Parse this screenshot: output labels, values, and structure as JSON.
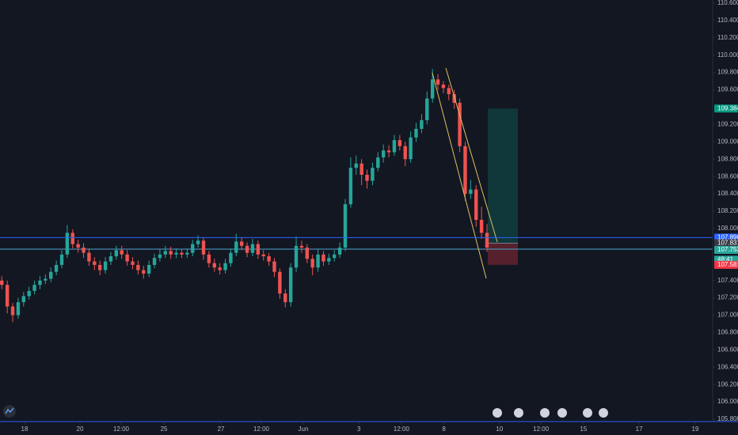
{
  "chart_data": {
    "type": "candlestick",
    "series": [
      {
        "up_color": "#26a69a",
        "down_color": "#ef5350",
        "open": [
          107.4,
          107.35,
          107.1,
          107.0,
          107.15,
          107.22,
          107.28,
          107.35,
          107.4,
          107.42,
          107.5,
          107.58,
          107.7,
          107.95,
          107.82,
          107.78,
          107.72,
          107.62,
          107.58,
          107.52,
          107.62,
          107.68,
          107.75,
          107.7,
          107.62,
          107.58,
          107.52,
          107.48,
          107.58,
          107.66,
          107.7,
          107.74,
          107.7,
          107.72,
          107.7,
          107.72,
          107.82,
          107.86,
          107.7,
          107.6,
          107.55,
          107.52,
          107.6,
          107.72,
          107.85,
          107.8,
          107.72,
          107.82,
          107.7,
          107.68,
          107.62,
          107.5,
          107.25,
          107.15,
          107.55,
          107.8,
          107.78,
          107.65,
          107.55,
          107.7,
          107.62,
          107.66,
          107.7,
          107.78,
          108.28,
          108.7,
          108.75,
          108.62,
          108.55,
          108.7,
          108.82,
          108.9,
          108.88,
          109.02,
          108.95,
          108.8,
          109.05,
          109.15,
          109.25,
          109.5,
          109.72,
          109.66,
          109.62,
          109.55,
          109.45,
          108.95,
          108.4,
          108.45,
          108.1,
          107.95
        ],
        "high": [
          107.45,
          107.4,
          107.14,
          107.2,
          107.27,
          107.33,
          107.4,
          107.45,
          107.47,
          107.55,
          107.63,
          107.75,
          108.04,
          107.99,
          107.87,
          107.83,
          107.77,
          107.67,
          107.63,
          107.67,
          107.73,
          107.8,
          107.8,
          107.75,
          107.67,
          107.63,
          107.57,
          107.63,
          107.71,
          107.76,
          107.8,
          107.79,
          107.77,
          107.76,
          107.77,
          107.87,
          107.92,
          107.9,
          107.74,
          107.65,
          107.6,
          107.65,
          107.77,
          107.94,
          107.9,
          107.84,
          107.88,
          107.86,
          107.75,
          107.72,
          107.66,
          107.54,
          107.3,
          107.6,
          107.91,
          107.86,
          107.82,
          107.7,
          107.76,
          107.74,
          107.71,
          107.75,
          107.84,
          108.34,
          108.82,
          108.84,
          108.8,
          108.68,
          108.76,
          108.88,
          108.97,
          108.96,
          109.08,
          109.08,
          109.0,
          109.12,
          109.22,
          109.32,
          109.58,
          109.84,
          109.78,
          109.7,
          109.66,
          109.6,
          109.5,
          109.0,
          108.56,
          108.5,
          108.25,
          108.05
        ],
        "low": [
          107.3,
          107.02,
          106.92,
          106.96,
          107.1,
          107.18,
          107.24,
          107.3,
          107.36,
          107.38,
          107.46,
          107.54,
          107.66,
          107.77,
          107.72,
          107.66,
          107.57,
          107.52,
          107.46,
          107.48,
          107.58,
          107.64,
          107.65,
          107.57,
          107.53,
          107.47,
          107.42,
          107.44,
          107.54,
          107.62,
          107.66,
          107.65,
          107.66,
          107.66,
          107.66,
          107.68,
          107.78,
          107.64,
          107.55,
          107.5,
          107.47,
          107.48,
          107.56,
          107.68,
          107.75,
          107.67,
          107.68,
          107.65,
          107.63,
          107.57,
          107.44,
          107.19,
          107.09,
          107.1,
          107.5,
          107.72,
          107.6,
          107.46,
          107.5,
          107.57,
          107.58,
          107.62,
          107.66,
          107.74,
          108.24,
          108.62,
          108.5,
          108.46,
          108.5,
          108.66,
          108.76,
          108.82,
          108.84,
          108.9,
          108.72,
          108.76,
          109.0,
          109.1,
          109.2,
          109.45,
          109.6,
          109.56,
          109.48,
          109.38,
          108.88,
          108.32,
          108.34,
          108.02,
          107.88,
          107.73
        ],
        "close": [
          107.35,
          107.1,
          107.0,
          107.15,
          107.22,
          107.28,
          107.35,
          107.4,
          107.42,
          107.5,
          107.58,
          107.7,
          107.95,
          107.82,
          107.78,
          107.72,
          107.62,
          107.58,
          107.52,
          107.62,
          107.68,
          107.75,
          107.7,
          107.62,
          107.58,
          107.52,
          107.48,
          107.58,
          107.66,
          107.7,
          107.74,
          107.7,
          107.72,
          107.7,
          107.72,
          107.82,
          107.86,
          107.7,
          107.6,
          107.55,
          107.52,
          107.6,
          107.72,
          107.85,
          107.8,
          107.72,
          107.82,
          107.7,
          107.68,
          107.62,
          107.5,
          107.25,
          107.15,
          107.55,
          107.8,
          107.78,
          107.65,
          107.55,
          107.7,
          107.62,
          107.66,
          107.7,
          107.78,
          108.28,
          108.7,
          108.75,
          108.62,
          108.55,
          108.7,
          108.82,
          108.9,
          108.88,
          109.02,
          108.95,
          108.8,
          109.05,
          109.15,
          109.25,
          109.5,
          109.72,
          109.66,
          109.62,
          109.55,
          109.45,
          108.95,
          108.4,
          108.45,
          108.1,
          107.95,
          107.78
        ]
      }
    ],
    "xlim": [
      -0.33,
      129.67
    ],
    "xticks": [
      {
        "value": 4.17,
        "label": "18"
      },
      {
        "value": 14.34,
        "label": "20"
      },
      {
        "value": 21.89,
        "label": "12:00"
      },
      {
        "value": 29.74,
        "label": "25"
      },
      {
        "value": 40.2,
        "label": "27"
      },
      {
        "value": 47.6,
        "label": "12:00"
      },
      {
        "value": 55.3,
        "label": "Jun"
      },
      {
        "value": 65.5,
        "label": "3"
      },
      {
        "value": 73.3,
        "label": "12:00"
      },
      {
        "value": 81.1,
        "label": "8"
      },
      {
        "value": 91.3,
        "label": "10"
      },
      {
        "value": 98.9,
        "label": "12:00"
      },
      {
        "value": 106.7,
        "label": "15"
      },
      {
        "value": 116.9,
        "label": "17"
      },
      {
        "value": 127.2,
        "label": "19"
      }
    ],
    "ylim": [
      105.764,
      110.636
    ],
    "yticks": [
      {
        "value": 110.6,
        "label": "110.600"
      },
      {
        "value": 110.4,
        "label": "110.400"
      },
      {
        "value": 110.2,
        "label": "110.200"
      },
      {
        "value": 110.0,
        "label": "110.000"
      },
      {
        "value": 109.8,
        "label": "109.800"
      },
      {
        "value": 109.6,
        "label": "109.600"
      },
      {
        "value": 109.2,
        "label": "109.200"
      },
      {
        "value": 109.0,
        "label": "109.000"
      },
      {
        "value": 108.8,
        "label": "108.800"
      },
      {
        "value": 108.6,
        "label": "108.600"
      },
      {
        "value": 108.4,
        "label": "108.400"
      },
      {
        "value": 108.2,
        "label": "108.200"
      },
      {
        "value": 108.0,
        "label": "108.000"
      },
      {
        "value": 107.4,
        "label": "107.400"
      },
      {
        "value": 107.2,
        "label": "107.200"
      },
      {
        "value": 107.0,
        "label": "107.000"
      },
      {
        "value": 106.8,
        "label": "106.800"
      },
      {
        "value": 106.6,
        "label": "106.600"
      },
      {
        "value": 106.4,
        "label": "106.400"
      },
      {
        "value": 106.2,
        "label": "106.200"
      },
      {
        "value": 106.0,
        "label": "106.000"
      },
      {
        "value": 105.8,
        "label": "105.800"
      }
    ],
    "price_labels": [
      {
        "value": 109.384,
        "label": "109.384",
        "color": "#089981"
      },
      {
        "value": 107.896,
        "label": "107.896",
        "color": "#2962ff"
      },
      {
        "value": 107.831,
        "label": "107.831",
        "color": "#363a45"
      },
      {
        "value": 107.753,
        "label": "107.753",
        "color": "#26a69a"
      },
      {
        "value": 107.64,
        "label": "48:41",
        "color": "#26a69a"
      },
      {
        "value": 107.581,
        "label": "107.581",
        "color": "#f23645"
      }
    ]
  }
}
